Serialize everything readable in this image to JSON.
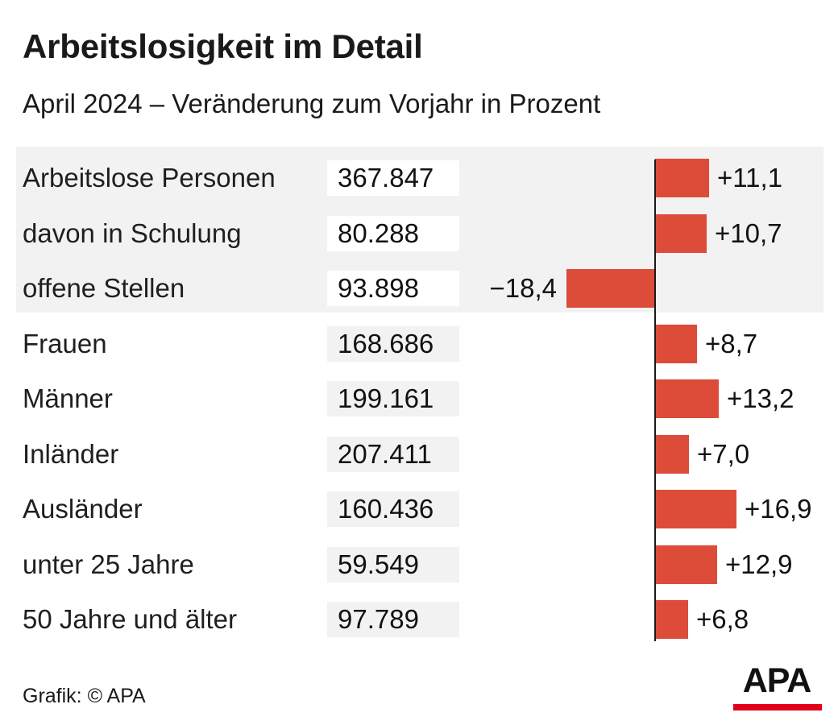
{
  "title": "Arbeitslosigkeit im Detail",
  "subtitle": "April 2024 – Veränderung zum Vorjahr in Prozent",
  "credit": "Grafik: © APA",
  "logo": "APA",
  "colors": {
    "bar": "#dd4b39",
    "group_background": "#f2f2f2",
    "logo_red": "#e2001a"
  },
  "chart_data": {
    "type": "bar",
    "orientation": "horizontal",
    "grid": false,
    "legend": "none",
    "categories": [
      "Arbeitslose Personen",
      "davon in Schulung",
      "offene Stellen",
      "Frauen",
      "Männer",
      "Inländer",
      "Ausländer",
      "unter 25 Jahre",
      "50 Jahre und älter"
    ],
    "counts": [
      "367.847",
      "80.288",
      "93.898",
      "168.686",
      "199.161",
      "207.411",
      "160.436",
      "59.549",
      "97.789"
    ],
    "values": [
      11.1,
      10.7,
      -18.4,
      8.7,
      13.2,
      7.0,
      16.9,
      12.9,
      6.8
    ],
    "value_labels": [
      "+11,1",
      "+10,7",
      "−18,4",
      "+8,7",
      "+13,2",
      "+7,0",
      "+16,9",
      "+12,9",
      "+6,8"
    ],
    "highlighted_group": [
      "Arbeitslose Personen",
      "davon in Schulung",
      "offene Stellen"
    ]
  }
}
